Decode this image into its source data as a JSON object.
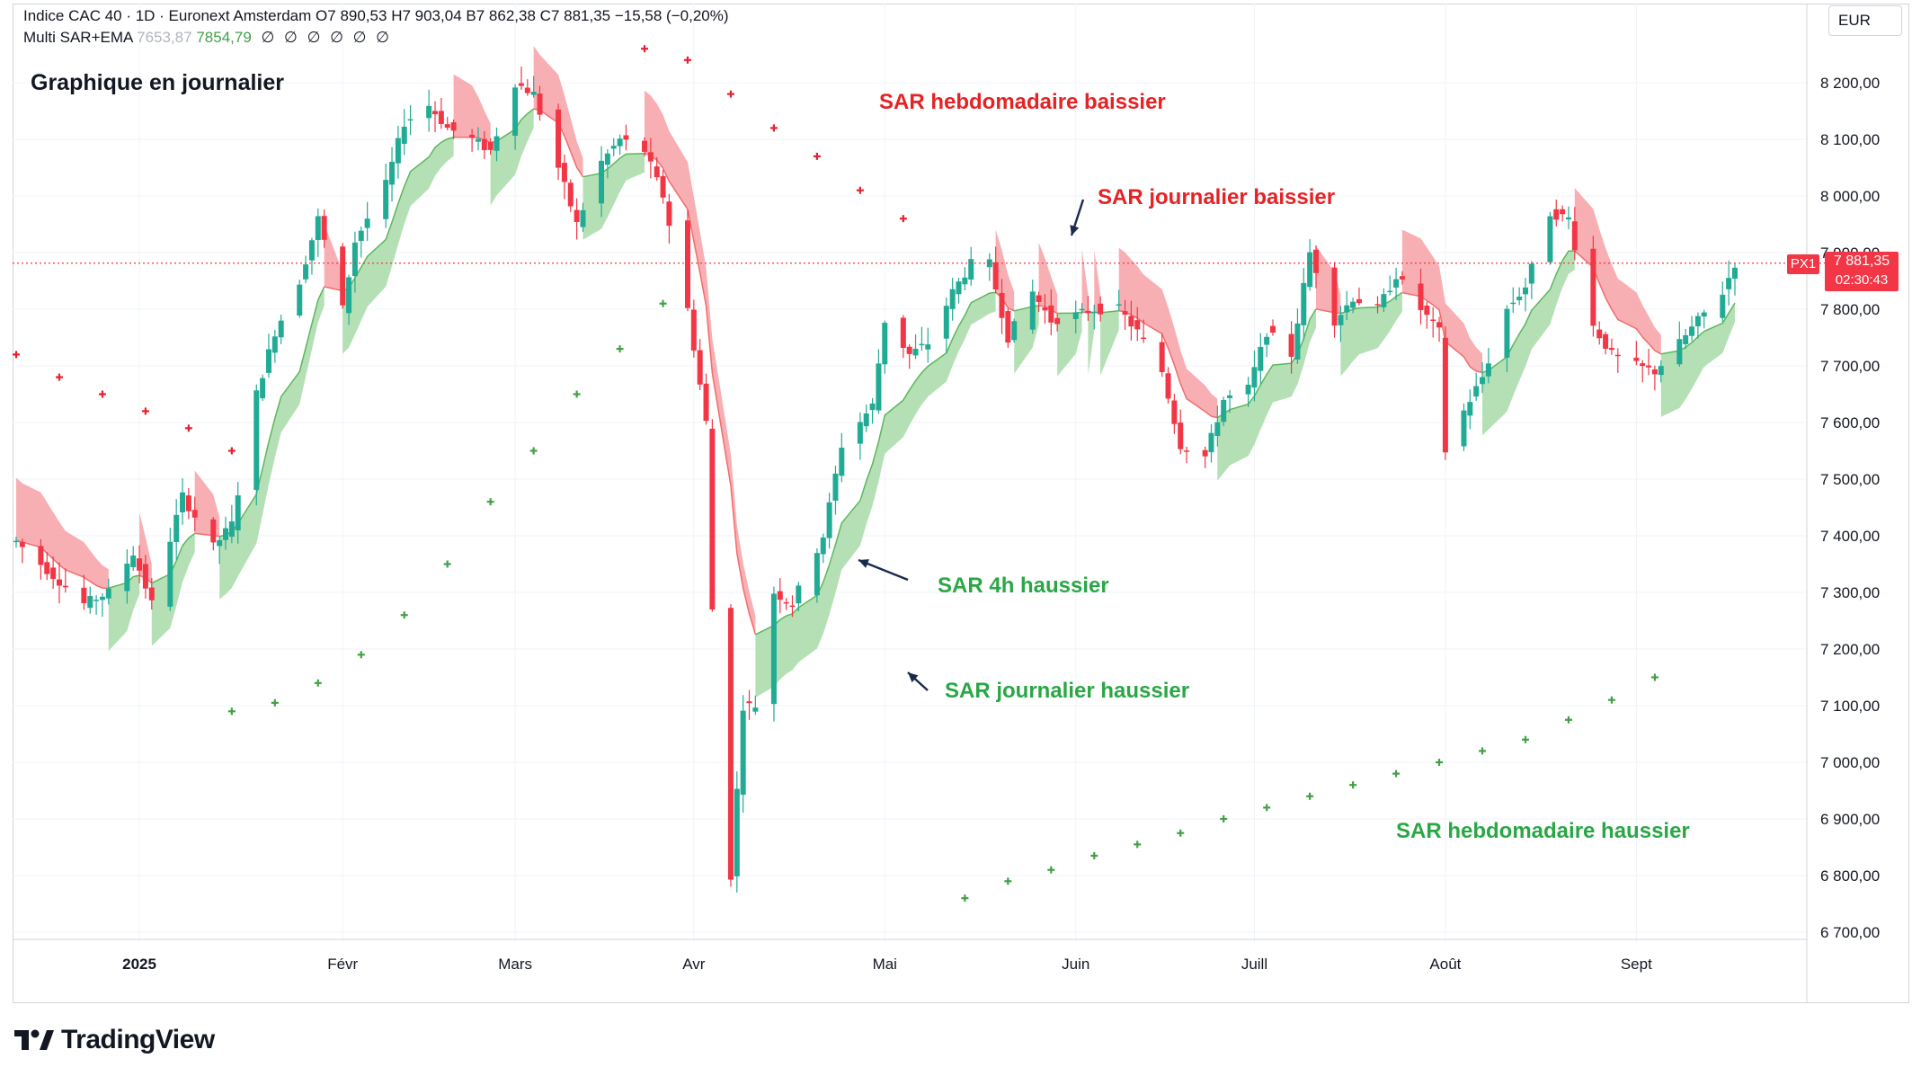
{
  "header": {
    "symbol_line": "Indice CAC 40 · 1D · Euronext Amsterdam",
    "ohlc": {
      "o_label": "O",
      "o": "7 890,53",
      "h_label": "H",
      "h": "7 903,04",
      "b_label": "B",
      "b": "7 862,38",
      "c_label": "C",
      "c": "7 881,35",
      "change": "−15,58 (−0,20%)"
    },
    "indicator_name": "Multi SAR+EMA",
    "indicator_value_faded": "7653,87",
    "indicator_value": "7854,79",
    "indicator_zeros": "∅ ∅ ∅ ∅ ∅ ∅"
  },
  "currency": "EUR",
  "price_tag": {
    "label": "PX1",
    "price": "7 881,35",
    "countdown": "02:30:43"
  },
  "brand": "TradingView",
  "colors": {
    "bull": "#22ab94",
    "bear": "#f23645",
    "bear_fill": "#f7a1a6",
    "bull_fill": "#a8dba8",
    "sar_bear": "#e5222f",
    "sar_bull": "#43a047",
    "ema_bull": "#5cb85c",
    "ema_bear": "#f26d6d"
  },
  "chart_data": {
    "type": "candlestick",
    "title": "Graphique en journalier",
    "y_axis": {
      "min": 6700,
      "max": 8200,
      "step": 100,
      "labels": [
        "8 200,00",
        "8 100,00",
        "8 000,00",
        "7 900,00",
        "7 800,00",
        "7 700,00",
        "7 600,00",
        "7 500,00",
        "7 400,00",
        "7 300,00",
        "7 200,00",
        "7 100,00",
        "7 000,00",
        "6 900,00",
        "6 800,00",
        "6 700,00"
      ]
    },
    "x_axis": {
      "range": [
        "2024-12-12",
        "2025-09-17"
      ],
      "ticks": [
        {
          "date": "2025-01-01",
          "label": "2025"
        },
        {
          "date": "2025-02-03",
          "label": "Févr"
        },
        {
          "date": "2025-03-03",
          "label": "Mars"
        },
        {
          "date": "2025-04-01",
          "label": "Avr"
        },
        {
          "date": "2025-05-02",
          "label": "Mai"
        },
        {
          "date": "2025-06-02",
          "label": "Juin"
        },
        {
          "date": "2025-07-01",
          "label": "Juill"
        },
        {
          "date": "2025-08-01",
          "label": "Août"
        },
        {
          "date": "2025-09-01",
          "label": "Sept"
        }
      ]
    },
    "last_price": 7881.35,
    "closes": [
      {
        "date": "2024-12-12",
        "close": 7390
      },
      {
        "date": "2024-12-16",
        "close": 7350
      },
      {
        "date": "2024-12-19",
        "close": 7320
      },
      {
        "date": "2024-12-23",
        "close": 7280
      },
      {
        "date": "2024-12-27",
        "close": 7300
      },
      {
        "date": "2024-12-31",
        "close": 7370
      },
      {
        "date": "2025-01-03",
        "close": 7280
      },
      {
        "date": "2025-01-08",
        "close": 7470
      },
      {
        "date": "2025-01-13",
        "close": 7380
      },
      {
        "date": "2025-01-16",
        "close": 7420
      },
      {
        "date": "2025-01-20",
        "close": 7650
      },
      {
        "date": "2025-01-23",
        "close": 7760
      },
      {
        "date": "2025-01-27",
        "close": 7850
      },
      {
        "date": "2025-01-30",
        "close": 7960
      },
      {
        "date": "2025-02-03",
        "close": 7800
      },
      {
        "date": "2025-02-05",
        "close": 7920
      },
      {
        "date": "2025-02-10",
        "close": 8020
      },
      {
        "date": "2025-02-13",
        "close": 8130
      },
      {
        "date": "2025-02-17",
        "close": 8160
      },
      {
        "date": "2025-02-20",
        "close": 8120
      },
      {
        "date": "2025-02-24",
        "close": 8100
      },
      {
        "date": "2025-02-27",
        "close": 8080
      },
      {
        "date": "2025-03-03",
        "close": 8200
      },
      {
        "date": "2025-03-06",
        "close": 8180
      },
      {
        "date": "2025-03-10",
        "close": 8050
      },
      {
        "date": "2025-03-13",
        "close": 7950
      },
      {
        "date": "2025-03-17",
        "close": 8060
      },
      {
        "date": "2025-03-20",
        "close": 8100
      },
      {
        "date": "2025-03-24",
        "close": 8080
      },
      {
        "date": "2025-03-27",
        "close": 8000
      },
      {
        "date": "2025-03-31",
        "close": 7800
      },
      {
        "date": "2025-04-03",
        "close": 7600
      },
      {
        "date": "2025-04-04",
        "close": 7270
      },
      {
        "date": "2025-04-07",
        "close": 6800
      },
      {
        "date": "2025-04-09",
        "close": 7100
      },
      {
        "date": "2025-04-11",
        "close": 7100
      },
      {
        "date": "2025-04-14",
        "close": 7300
      },
      {
        "date": "2025-04-17",
        "close": 7280
      },
      {
        "date": "2025-04-22",
        "close": 7400
      },
      {
        "date": "2025-04-25",
        "close": 7560
      },
      {
        "date": "2025-04-30",
        "close": 7630
      },
      {
        "date": "2025-05-02",
        "close": 7780
      },
      {
        "date": "2025-05-06",
        "close": 7720
      },
      {
        "date": "2025-05-09",
        "close": 7740
      },
      {
        "date": "2025-05-13",
        "close": 7830
      },
      {
        "date": "2025-05-16",
        "close": 7880
      },
      {
        "date": "2025-05-19",
        "close": 7880
      },
      {
        "date": "2025-05-22",
        "close": 7750
      },
      {
        "date": "2025-05-26",
        "close": 7830
      },
      {
        "date": "2025-05-29",
        "close": 7780
      },
      {
        "date": "2025-06-02",
        "close": 7790
      },
      {
        "date": "2025-06-05",
        "close": 7800
      },
      {
        "date": "2025-06-09",
        "close": 7800
      },
      {
        "date": "2025-06-12",
        "close": 7760
      },
      {
        "date": "2025-06-16",
        "close": 7690
      },
      {
        "date": "2025-06-19",
        "close": 7560
      },
      {
        "date": "2025-06-23",
        "close": 7540
      },
      {
        "date": "2025-06-26",
        "close": 7640
      },
      {
        "date": "2025-06-30",
        "close": 7660
      },
      {
        "date": "2025-07-03",
        "close": 7760
      },
      {
        "date": "2025-07-07",
        "close": 7720
      },
      {
        "date": "2025-07-10",
        "close": 7900
      },
      {
        "date": "2025-07-14",
        "close": 7780
      },
      {
        "date": "2025-07-17",
        "close": 7820
      },
      {
        "date": "2025-07-21",
        "close": 7800
      },
      {
        "date": "2025-07-24",
        "close": 7860
      },
      {
        "date": "2025-07-28",
        "close": 7800
      },
      {
        "date": "2025-07-31",
        "close": 7760
      },
      {
        "date": "2025-08-01",
        "close": 7550
      },
      {
        "date": "2025-08-04",
        "close": 7620
      },
      {
        "date": "2025-08-07",
        "close": 7680
      },
      {
        "date": "2025-08-11",
        "close": 7800
      },
      {
        "date": "2025-08-14",
        "close": 7840
      },
      {
        "date": "2025-08-18",
        "close": 7970
      },
      {
        "date": "2025-08-21",
        "close": 7960
      },
      {
        "date": "2025-08-25",
        "close": 7770
      },
      {
        "date": "2025-08-28",
        "close": 7720
      },
      {
        "date": "2025-09-01",
        "close": 7700
      },
      {
        "date": "2025-09-04",
        "close": 7690
      },
      {
        "date": "2025-09-08",
        "close": 7740
      },
      {
        "date": "2025-09-11",
        "close": 7780
      },
      {
        "date": "2025-09-15",
        "close": 7830
      },
      {
        "date": "2025-09-17",
        "close": 7881
      }
    ],
    "sar_weekly_bear": [
      {
        "date": "2024-12-12",
        "value": 7720
      },
      {
        "date": "2024-12-19",
        "value": 7680
      },
      {
        "date": "2024-12-26",
        "value": 7650
      },
      {
        "date": "2025-01-02",
        "value": 7620
      },
      {
        "date": "2025-01-09",
        "value": 7590
      },
      {
        "date": "2025-01-16",
        "value": 7550
      },
      {
        "date": "2025-03-24",
        "value": 8260
      },
      {
        "date": "2025-03-31",
        "value": 8240
      },
      {
        "date": "2025-04-07",
        "value": 8180
      },
      {
        "date": "2025-04-14",
        "value": 8120
      },
      {
        "date": "2025-04-21",
        "value": 8070
      },
      {
        "date": "2025-04-28",
        "value": 8010
      },
      {
        "date": "2025-05-05",
        "value": 7960
      }
    ],
    "sar_weekly_bull": [
      {
        "date": "2025-01-16",
        "value": 7090
      },
      {
        "date": "2025-01-23",
        "value": 7105
      },
      {
        "date": "2025-01-30",
        "value": 7140
      },
      {
        "date": "2025-02-06",
        "value": 7190
      },
      {
        "date": "2025-02-13",
        "value": 7260
      },
      {
        "date": "2025-02-20",
        "value": 7350
      },
      {
        "date": "2025-02-27",
        "value": 7460
      },
      {
        "date": "2025-03-06",
        "value": 7550
      },
      {
        "date": "2025-03-13",
        "value": 7650
      },
      {
        "date": "2025-03-20",
        "value": 7730
      },
      {
        "date": "2025-03-27",
        "value": 7810
      },
      {
        "date": "2025-05-15",
        "value": 6760
      },
      {
        "date": "2025-05-22",
        "value": 6790
      },
      {
        "date": "2025-05-29",
        "value": 6810
      },
      {
        "date": "2025-06-05",
        "value": 6835
      },
      {
        "date": "2025-06-12",
        "value": 6855
      },
      {
        "date": "2025-06-19",
        "value": 6875
      },
      {
        "date": "2025-06-26",
        "value": 6900
      },
      {
        "date": "2025-07-03",
        "value": 6920
      },
      {
        "date": "2025-07-10",
        "value": 6940
      },
      {
        "date": "2025-07-17",
        "value": 6960
      },
      {
        "date": "2025-07-24",
        "value": 6980
      },
      {
        "date": "2025-07-31",
        "value": 7000
      },
      {
        "date": "2025-08-07",
        "value": 7020
      },
      {
        "date": "2025-08-14",
        "value": 7040
      },
      {
        "date": "2025-08-21",
        "value": 7075
      },
      {
        "date": "2025-08-28",
        "value": 7110
      },
      {
        "date": "2025-09-04",
        "value": 7150
      }
    ],
    "annotations": [
      {
        "text": "SAR hebdomadaire baissier",
        "color": "red"
      },
      {
        "text": "SAR journalier baissier",
        "color": "red"
      },
      {
        "text": "SAR 4h haussier",
        "color": "green"
      },
      {
        "text": "SAR journalier haussier",
        "color": "green"
      },
      {
        "text": "SAR hebdomadaire haussier",
        "color": "green"
      }
    ]
  }
}
